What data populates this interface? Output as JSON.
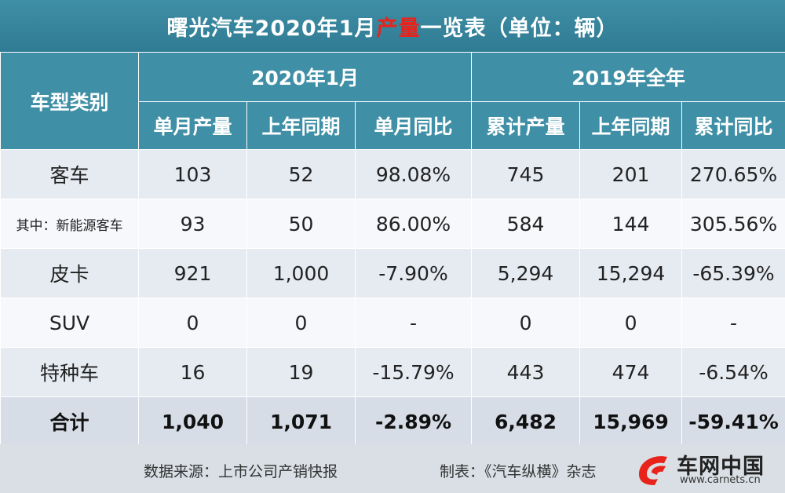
{
  "title": {
    "prefix": "曙光汽车2020年1月",
    "highlight": "产量",
    "suffix": "一览表（单位：辆）"
  },
  "header": {
    "category": "车型类别",
    "group_month": "2020年1月",
    "group_year": "2019年全年",
    "columns": [
      "单月产量",
      "上年同期",
      "单月同比",
      "累计产量",
      "上年同期",
      "累计同比"
    ]
  },
  "rows": [
    {
      "label": "客车",
      "values": [
        "103",
        "52",
        "98.08%",
        "745",
        "201",
        "270.65%"
      ]
    },
    {
      "label": "其中：新能源客车",
      "values": [
        "93",
        "50",
        "86.00%",
        "584",
        "144",
        "305.56%"
      ]
    },
    {
      "label": "皮卡",
      "values": [
        "921",
        "1,000",
        "-7.90%",
        "5,294",
        "15,294",
        "-65.39%"
      ]
    },
    {
      "label": "SUV",
      "values": [
        "0",
        "0",
        "-",
        "0",
        "0",
        "-"
      ]
    },
    {
      "label": "特种车",
      "values": [
        "16",
        "19",
        "-15.79%",
        "443",
        "474",
        "-6.54%"
      ]
    }
  ],
  "total": {
    "label": "合计",
    "values": [
      "1,040",
      "1,071",
      "-2.89%",
      "6,482",
      "15,969",
      "-59.41%"
    ]
  },
  "footer": {
    "source": "数据来源：上市公司产销快报",
    "maker": "制表：《汽车纵横》杂志"
  },
  "logo": {
    "name": "车网中国",
    "url": "www.carnets.cn"
  },
  "colors": {
    "header_bg": "#3f8fa6",
    "negative": "#e02222",
    "highlight": "#e8231b"
  }
}
